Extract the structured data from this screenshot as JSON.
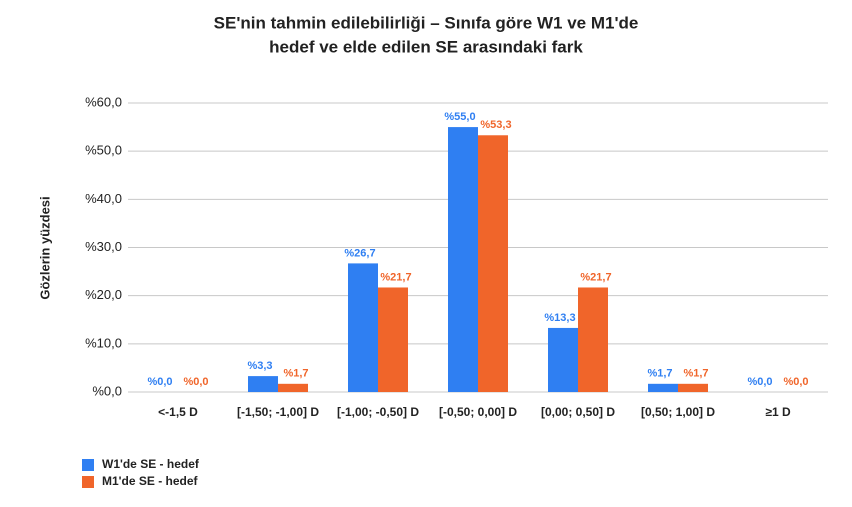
{
  "chart_data": {
    "type": "bar",
    "title": [
      "SE'nin tahmin edilebilirliği – Sınıfa göre W1 ve M1'de",
      "hedef ve elde edilen SE arasındaki fark"
    ],
    "y_label": "Gözlerin yüzdesi",
    "categories": [
      "<-1,5 D",
      "[-1,50; -1,00] D",
      "[-1,00; -0,50] D",
      "[-0,50; 0,00] D",
      "[0,00; 0,50] D",
      "[0,50; 1,00] D",
      "≥1 D"
    ],
    "series": [
      {
        "name": "W1'de SE - hedef",
        "color": "#2f7ff2",
        "values": [
          0,
          3.3,
          26.7,
          55,
          13.3,
          1.7,
          0
        ],
        "value_labels": [
          "%0,0",
          "%3,3",
          "%26,7",
          "%55,0",
          "%13,3",
          "%1,7",
          "%0,0"
        ]
      },
      {
        "name": "M1'de SE - hedef",
        "color": "#f0652a",
        "values": [
          0,
          1.7,
          21.7,
          53.3,
          21.7,
          1.7,
          0
        ],
        "value_labels": [
          "%0,0",
          "%1,7",
          "%21,7",
          "%53,3",
          "%21,7",
          "%1,7",
          "%0,0"
        ]
      }
    ],
    "ylim": [
      0,
      60
    ],
    "yticks": [
      {
        "value": 0,
        "label": "%0,0"
      },
      {
        "value": 10,
        "label": "%10,0"
      },
      {
        "value": 20,
        "label": "%20,0"
      },
      {
        "value": 30,
        "label": "%30,0"
      },
      {
        "value": 40,
        "label": "%40,0"
      },
      {
        "value": 50,
        "label": "%50,0"
      },
      {
        "value": 60,
        "label": "%60,0"
      }
    ],
    "grid": true,
    "legend": "bottom-left"
  }
}
